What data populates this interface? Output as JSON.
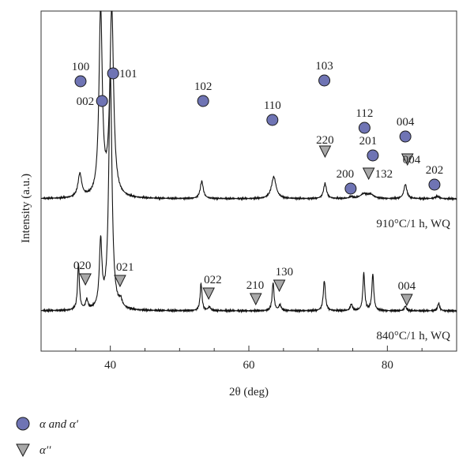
{
  "chart_data": {
    "type": "line",
    "xlabel": "2θ (deg)",
    "ylabel": "Intensity (a.u.)",
    "xlim": [
      30,
      90
    ],
    "x_ticks": [
      40,
      60,
      80
    ],
    "grid": false,
    "legend_position": "bottom-left",
    "legend": [
      {
        "marker": "circle",
        "label": "α and α′",
        "color": "#6f74b4"
      },
      {
        "marker": "triangle-down",
        "label": "α′′",
        "color": "#a8a8a8"
      }
    ],
    "series": [
      {
        "label": "910°C/1 h, WQ",
        "baseline": 0.0,
        "peaks": [
          {
            "x": 35.6,
            "h": 0.62,
            "w": 0.32
          },
          {
            "x": 38.6,
            "h": 5.0,
            "w": 0.28
          },
          {
            "x": 40.2,
            "h": 5.0,
            "w": 0.32
          },
          {
            "x": 53.2,
            "h": 0.46,
            "w": 0.26
          },
          {
            "x": 63.6,
            "h": 0.58,
            "w": 0.4
          },
          {
            "x": 71.0,
            "h": 0.4,
            "w": 0.26
          },
          {
            "x": 74.8,
            "h": 0.05,
            "w": 0.3
          },
          {
            "x": 76.6,
            "h": 0.12,
            "w": 0.6
          },
          {
            "x": 77.6,
            "h": 0.1,
            "w": 0.55
          },
          {
            "x": 82.6,
            "h": 0.38,
            "w": 0.26
          },
          {
            "x": 87.2,
            "h": 0.06,
            "w": 0.4
          }
        ]
      },
      {
        "label": "840°C/1 h, WQ",
        "baseline": 0.0,
        "peaks": [
          {
            "x": 35.4,
            "h": 0.98,
            "w": 0.16
          },
          {
            "x": 36.6,
            "h": 0.2,
            "w": 0.2
          },
          {
            "x": 38.6,
            "h": 1.4,
            "w": 0.22
          },
          {
            "x": 40.0,
            "h": 5.0,
            "w": 0.28
          },
          {
            "x": 41.5,
            "h": 0.14,
            "w": 0.25
          },
          {
            "x": 53.1,
            "h": 0.58,
            "w": 0.16
          },
          {
            "x": 54.3,
            "h": 0.08,
            "w": 0.2
          },
          {
            "x": 63.5,
            "h": 0.6,
            "w": 0.16
          },
          {
            "x": 64.5,
            "h": 0.12,
            "w": 0.2
          },
          {
            "x": 70.9,
            "h": 0.64,
            "w": 0.18
          },
          {
            "x": 74.8,
            "h": 0.14,
            "w": 0.18
          },
          {
            "x": 76.6,
            "h": 0.8,
            "w": 0.16
          },
          {
            "x": 77.9,
            "h": 0.78,
            "w": 0.16
          },
          {
            "x": 82.6,
            "h": 0.1,
            "w": 0.18
          },
          {
            "x": 87.4,
            "h": 0.16,
            "w": 0.18
          }
        ]
      }
    ],
    "annotations": [
      {
        "pattern": 0,
        "marker": "circle",
        "label": "100",
        "x": 35.7
      },
      {
        "pattern": 0,
        "marker": "circle",
        "label": "002",
        "x": 38.8
      },
      {
        "pattern": 0,
        "marker": "circle",
        "label": "101",
        "x": 40.4
      },
      {
        "pattern": 0,
        "marker": "circle",
        "label": "102",
        "x": 53.4
      },
      {
        "pattern": 0,
        "marker": "circle",
        "label": "110",
        "x": 63.4
      },
      {
        "pattern": 0,
        "marker": "circle",
        "label": "103",
        "x": 70.9
      },
      {
        "pattern": 0,
        "marker": "triangle",
        "label": "220",
        "x": 71.0
      },
      {
        "pattern": 0,
        "marker": "circle",
        "label": "112",
        "x": 76.7
      },
      {
        "pattern": 0,
        "marker": "circle",
        "label": "201",
        "x": 77.9
      },
      {
        "pattern": 0,
        "marker": "circle",
        "label": "200",
        "x": 74.7
      },
      {
        "pattern": 0,
        "marker": "triangle",
        "label": "132",
        "x": 77.3
      },
      {
        "pattern": 0,
        "marker": "circle",
        "label": "004",
        "x": 82.6
      },
      {
        "pattern": 0,
        "marker": "triangle",
        "label": "004",
        "x": 82.9
      },
      {
        "pattern": 0,
        "marker": "circle",
        "label": "202",
        "x": 86.8
      },
      {
        "pattern": 1,
        "marker": "triangle",
        "label": "020",
        "x": 36.4
      },
      {
        "pattern": 1,
        "marker": "triangle",
        "label": "021",
        "x": 41.4
      },
      {
        "pattern": 1,
        "marker": "triangle",
        "label": "022",
        "x": 54.2
      },
      {
        "pattern": 1,
        "marker": "triangle",
        "label": "210",
        "x": 61.0
      },
      {
        "pattern": 1,
        "marker": "triangle",
        "label": "130",
        "x": 64.4
      },
      {
        "pattern": 1,
        "marker": "triangle",
        "label": "004",
        "x": 82.8
      }
    ]
  }
}
